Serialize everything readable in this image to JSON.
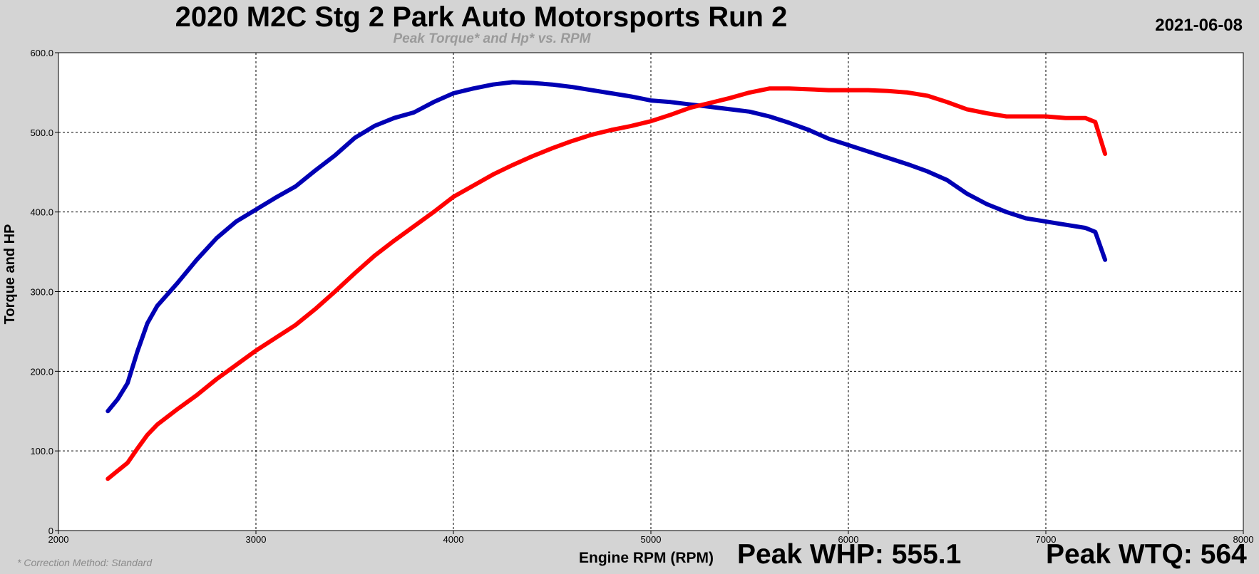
{
  "header": {
    "title": "2020 M2C Stg 2 Park Auto Motorsports Run 2",
    "subtitle": "Peak Torque* and Hp* vs. RPM",
    "date": "2021-06-08"
  },
  "footer": {
    "footnote": "* Correction Method: Standard",
    "peak_whp": "Peak WHP: 555.1",
    "peak_wtq": "Peak WTQ: 564"
  },
  "colors": {
    "background": "#d4d4d4",
    "plot_background": "#ffffff",
    "torque": "#0000b4",
    "horsepower": "#ff0000"
  },
  "chart_data": {
    "type": "line",
    "xlabel": "Engine RPM (RPM)",
    "ylabel": "Torque and HP",
    "xlim": [
      2000,
      8000
    ],
    "ylim": [
      0,
      600
    ],
    "x_ticks": [
      2000,
      3000,
      4000,
      5000,
      6000,
      7000,
      8000
    ],
    "x_tick_labels": [
      "2000",
      "3000",
      "4000",
      "5000",
      "6000",
      "7000",
      "8000"
    ],
    "y_ticks": [
      0,
      100,
      200,
      300,
      400,
      500,
      600
    ],
    "y_tick_labels": [
      "0",
      "100.0",
      "200.0",
      "300.0",
      "400.0",
      "500.0",
      "600.0"
    ],
    "grid": true,
    "legend": "none",
    "series": [
      {
        "color": "#0000b4",
        "points": [
          [
            2250,
            150
          ],
          [
            2300,
            165
          ],
          [
            2350,
            185
          ],
          [
            2400,
            225
          ],
          [
            2450,
            260
          ],
          [
            2500,
            282
          ],
          [
            2600,
            310
          ],
          [
            2700,
            340
          ],
          [
            2800,
            367
          ],
          [
            2900,
            388
          ],
          [
            3000,
            403
          ],
          [
            3100,
            418
          ],
          [
            3200,
            432
          ],
          [
            3300,
            452
          ],
          [
            3400,
            471
          ],
          [
            3500,
            493
          ],
          [
            3600,
            508
          ],
          [
            3700,
            518
          ],
          [
            3800,
            525
          ],
          [
            3900,
            538
          ],
          [
            4000,
            549
          ],
          [
            4100,
            555
          ],
          [
            4200,
            560
          ],
          [
            4300,
            563
          ],
          [
            4400,
            562
          ],
          [
            4500,
            560
          ],
          [
            4600,
            557
          ],
          [
            4700,
            553
          ],
          [
            4800,
            549
          ],
          [
            4900,
            545
          ],
          [
            5000,
            540
          ],
          [
            5100,
            538
          ],
          [
            5200,
            535
          ],
          [
            5300,
            532
          ],
          [
            5400,
            529
          ],
          [
            5500,
            526
          ],
          [
            5600,
            520
          ],
          [
            5700,
            512
          ],
          [
            5800,
            503
          ],
          [
            5900,
            492
          ],
          [
            6000,
            484
          ],
          [
            6100,
            476
          ],
          [
            6200,
            468
          ],
          [
            6300,
            460
          ],
          [
            6400,
            451
          ],
          [
            6500,
            440
          ],
          [
            6600,
            423
          ],
          [
            6700,
            410
          ],
          [
            6800,
            400
          ],
          [
            6900,
            392
          ],
          [
            7000,
            388
          ],
          [
            7100,
            384
          ],
          [
            7200,
            380
          ],
          [
            7250,
            375
          ],
          [
            7300,
            340
          ]
        ]
      },
      {
        "color": "#ff0000",
        "points": [
          [
            2250,
            65
          ],
          [
            2300,
            75
          ],
          [
            2350,
            85
          ],
          [
            2400,
            103
          ],
          [
            2450,
            120
          ],
          [
            2500,
            133
          ],
          [
            2600,
            152
          ],
          [
            2700,
            170
          ],
          [
            2800,
            190
          ],
          [
            2900,
            208
          ],
          [
            3000,
            226
          ],
          [
            3100,
            242
          ],
          [
            3200,
            258
          ],
          [
            3300,
            278
          ],
          [
            3400,
            300
          ],
          [
            3500,
            323
          ],
          [
            3600,
            345
          ],
          [
            3700,
            364
          ],
          [
            3800,
            382
          ],
          [
            3900,
            400
          ],
          [
            4000,
            419
          ],
          [
            4100,
            433
          ],
          [
            4200,
            447
          ],
          [
            4300,
            459
          ],
          [
            4400,
            470
          ],
          [
            4500,
            480
          ],
          [
            4600,
            489
          ],
          [
            4700,
            497
          ],
          [
            4800,
            503
          ],
          [
            4900,
            508
          ],
          [
            5000,
            514
          ],
          [
            5100,
            522
          ],
          [
            5200,
            531
          ],
          [
            5300,
            537
          ],
          [
            5400,
            543
          ],
          [
            5500,
            550
          ],
          [
            5600,
            555
          ],
          [
            5700,
            555
          ],
          [
            5800,
            554
          ],
          [
            5900,
            553
          ],
          [
            6000,
            553
          ],
          [
            6100,
            553
          ],
          [
            6200,
            552
          ],
          [
            6300,
            550
          ],
          [
            6400,
            546
          ],
          [
            6500,
            538
          ],
          [
            6600,
            529
          ],
          [
            6700,
            524
          ],
          [
            6800,
            520
          ],
          [
            6900,
            520
          ],
          [
            7000,
            520
          ],
          [
            7100,
            518
          ],
          [
            7200,
            518
          ],
          [
            7250,
            513
          ],
          [
            7300,
            473
          ]
        ]
      }
    ]
  }
}
